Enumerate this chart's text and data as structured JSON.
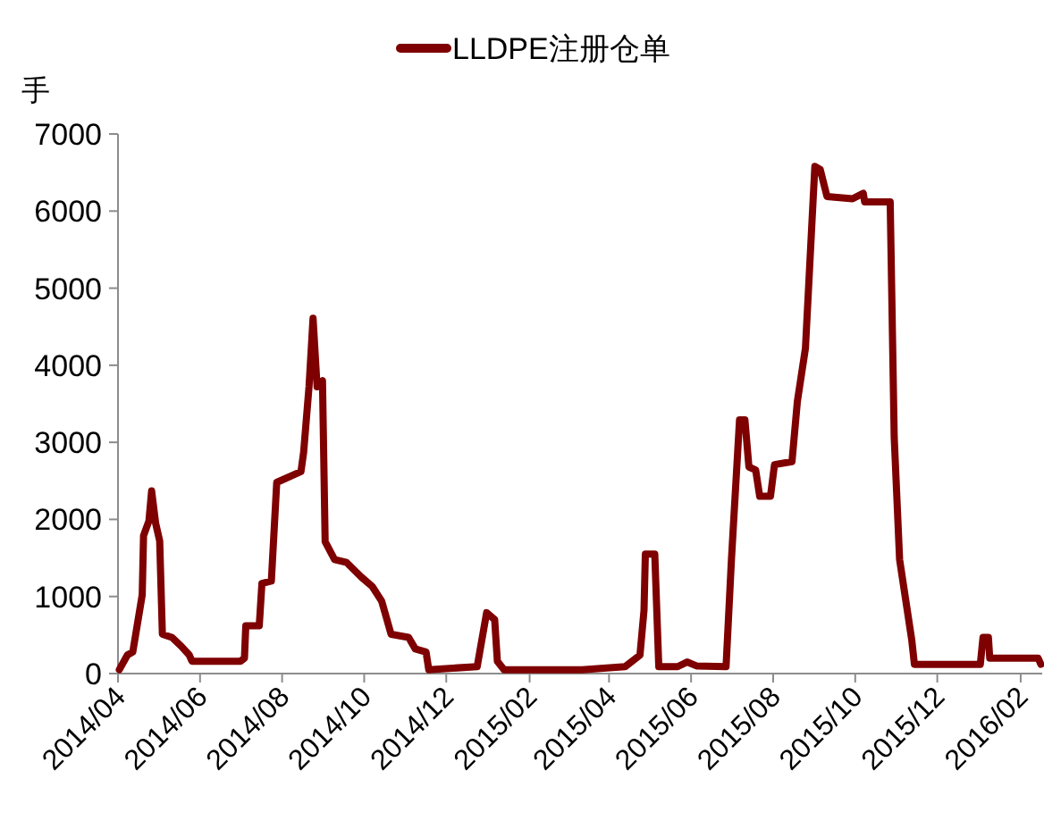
{
  "chart_data": {
    "type": "line",
    "ylabel": "手",
    "legend": "top",
    "marker": "none",
    "line_style": "solid",
    "grid": false,
    "xlim": [
      "2014-04-01",
      "2016-02-17"
    ],
    "xticks": [
      {
        "value": "2014-04",
        "label": "2014/04"
      },
      {
        "value": "2014-06",
        "label": "2014/06"
      },
      {
        "value": "2014-08",
        "label": "2014/08"
      },
      {
        "value": "2014-10",
        "label": "2014/10"
      },
      {
        "value": "2014-12",
        "label": "2014/12"
      },
      {
        "value": "2015-02",
        "label": "2015/02"
      },
      {
        "value": "2015-04",
        "label": "2015/04"
      },
      {
        "value": "2015-06",
        "label": "2015/06"
      },
      {
        "value": "2015-08",
        "label": "2015/08"
      },
      {
        "value": "2015-10",
        "label": "2015/10"
      },
      {
        "value": "2015-12",
        "label": "2015/12"
      },
      {
        "value": "2016-02",
        "label": "2016/02"
      }
    ],
    "ylim": [
      0,
      7000
    ],
    "yticks": [
      0,
      1000,
      2000,
      3000,
      4000,
      5000,
      6000,
      7000
    ],
    "x": [
      "2014-04-02",
      "2014-04-08",
      "2014-04-12",
      "2014-04-19",
      "2014-04-20",
      "2014-04-24",
      "2014-04-26",
      "2014-04-29",
      "2014-05-02",
      "2014-05-04",
      "2014-05-11",
      "2014-05-18",
      "2014-05-24",
      "2014-05-26",
      "2014-07-01",
      "2014-07-04",
      "2014-07-05",
      "2014-07-15",
      "2014-07-17",
      "2014-07-24",
      "2014-07-28",
      "2014-08-15",
      "2014-08-17",
      "2014-08-21",
      "2014-08-24",
      "2014-08-27",
      "2014-08-31",
      "2014-09-02",
      "2014-09-09",
      "2014-09-18",
      "2014-09-22",
      "2014-09-29",
      "2014-10-07",
      "2014-10-14",
      "2014-10-21",
      "2014-11-03",
      "2014-11-08",
      "2014-11-16",
      "2014-11-18",
      "2014-12-24",
      "2014-12-31",
      "2015-01-06",
      "2015-01-08",
      "2015-01-13",
      "2015-03-12",
      "2015-04-13",
      "2015-04-24",
      "2015-04-27",
      "2015-04-28",
      "2015-05-05",
      "2015-05-08",
      "2015-05-22",
      "2015-05-29",
      "2015-06-05",
      "2015-06-27",
      "2015-07-01",
      "2015-07-07",
      "2015-07-11",
      "2015-07-14",
      "2015-07-19",
      "2015-07-22",
      "2015-07-30",
      "2015-08-02",
      "2015-08-15",
      "2015-08-19",
      "2015-08-25",
      "2015-09-01",
      "2015-09-05",
      "2015-09-10",
      "2015-09-29",
      "2015-10-07",
      "2015-10-08",
      "2015-10-27",
      "2015-10-30",
      "2015-11-03",
      "2015-11-12",
      "2015-11-14",
      "2016-01-02",
      "2016-01-04",
      "2016-01-08",
      "2016-01-09",
      "2016-02-14",
      "2016-02-16"
    ],
    "series": [
      {
        "name": "LLDPE注册仓单",
        "color": "#7f0000",
        "values": [
          50,
          240,
          280,
          1020,
          1790,
          1980,
          2370,
          1950,
          1720,
          510,
          470,
          355,
          240,
          160,
          160,
          200,
          620,
          620,
          1170,
          1200,
          2480,
          2620,
          2870,
          3720,
          4610,
          3720,
          3800,
          1710,
          1480,
          1440,
          1370,
          1250,
          1130,
          940,
          510,
          470,
          320,
          280,
          50,
          90,
          790,
          700,
          160,
          50,
          50,
          90,
          240,
          820,
          1550,
          1550,
          90,
          90,
          150,
          100,
          90,
          1480,
          3290,
          3290,
          2680,
          2640,
          2300,
          2300,
          2710,
          2750,
          3530,
          4220,
          6580,
          6540,
          6190,
          6160,
          6230,
          6120,
          6120,
          3060,
          1480,
          440,
          120,
          120,
          470,
          470,
          200,
          200,
          120
        ]
      }
    ]
  }
}
